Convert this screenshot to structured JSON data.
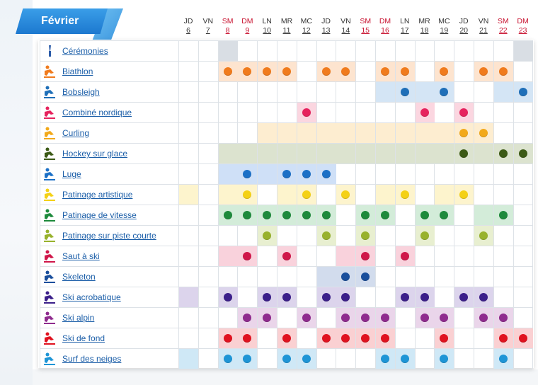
{
  "month": "Février",
  "days": [
    {
      "name": "JD",
      "num": "6",
      "weekend": false
    },
    {
      "name": "VN",
      "num": "7",
      "weekend": false
    },
    {
      "name": "SM",
      "num": "8",
      "weekend": true
    },
    {
      "name": "DM",
      "num": "9",
      "weekend": true
    },
    {
      "name": "LN",
      "num": "10",
      "weekend": false
    },
    {
      "name": "MR",
      "num": "11",
      "weekend": false
    },
    {
      "name": "MC",
      "num": "12",
      "weekend": false
    },
    {
      "name": "JD",
      "num": "13",
      "weekend": false
    },
    {
      "name": "VN",
      "num": "14",
      "weekend": false
    },
    {
      "name": "SM",
      "num": "15",
      "weekend": true
    },
    {
      "name": "DM",
      "num": "16",
      "weekend": true
    },
    {
      "name": "LN",
      "num": "17",
      "weekend": false
    },
    {
      "name": "MR",
      "num": "18",
      "weekend": false
    },
    {
      "name": "MC",
      "num": "19",
      "weekend": false
    },
    {
      "name": "JD",
      "num": "20",
      "weekend": false
    },
    {
      "name": "VN",
      "num": "21",
      "weekend": false
    },
    {
      "name": "SM",
      "num": "22",
      "weekend": true
    },
    {
      "name": "DM",
      "num": "23",
      "weekend": true
    }
  ],
  "sports": [
    {
      "name": "Cérémonies",
      "icon": "torch-icon",
      "color": "#2a5ba8",
      "bg": "#d9dee4",
      "event_days": [
        2,
        17
      ],
      "medal_days": []
    },
    {
      "name": "Biathlon",
      "icon": "biathlon-icon",
      "color": "#f07b1d",
      "bg": "#fde4cf",
      "event_days": [
        2,
        3,
        4,
        5,
        7,
        8,
        10,
        11,
        13,
        15,
        16
      ],
      "medal_days": [
        2,
        3,
        4,
        5,
        7,
        8,
        10,
        11,
        13,
        15,
        16
      ]
    },
    {
      "name": "Bobsleigh",
      "icon": "bobsleigh-icon",
      "color": "#1f6fb8",
      "bg": "#d4e5f5",
      "event_days": [
        10,
        11,
        12,
        13,
        16,
        17
      ],
      "medal_days": [
        11,
        13,
        17
      ]
    },
    {
      "name": "Combiné nordique",
      "icon": "nordic-combined-icon",
      "color": "#e6225d",
      "bg": "#fbd6e0",
      "event_days": [
        6,
        12,
        14
      ],
      "medal_days": [
        6,
        12,
        14
      ]
    },
    {
      "name": "Curling",
      "icon": "curling-icon",
      "color": "#f2a91a",
      "bg": "#fdedd0",
      "event_days": [
        4,
        5,
        6,
        7,
        8,
        9,
        10,
        11,
        12,
        13,
        14,
        15
      ],
      "medal_days": [
        14,
        15
      ]
    },
    {
      "name": "Hockey sur glace",
      "icon": "hockey-icon",
      "color": "#3c5a16",
      "bg": "#dce3cf",
      "event_days": [
        2,
        3,
        4,
        5,
        6,
        7,
        8,
        9,
        10,
        11,
        12,
        13,
        14,
        15,
        16,
        17
      ],
      "medal_days": [
        14,
        16,
        17
      ]
    },
    {
      "name": "Luge",
      "icon": "luge-icon",
      "color": "#1c70c6",
      "bg": "#cfe0f7",
      "event_days": [
        2,
        3,
        4,
        5,
        6,
        7
      ],
      "medal_days": [
        3,
        5,
        6,
        7
      ]
    },
    {
      "name": "Patinage artistique",
      "icon": "figure-skating-icon",
      "color": "#f4d116",
      "bg": "#fdf4cd",
      "event_days": [
        0,
        2,
        3,
        5,
        6,
        8,
        10,
        11,
        13,
        14
      ],
      "medal_days": [
        3,
        6,
        8,
        11,
        14
      ]
    },
    {
      "name": "Patinage de vitesse",
      "icon": "speed-skating-icon",
      "color": "#1e8a3c",
      "bg": "#d3ecd9",
      "event_days": [
        2,
        3,
        4,
        5,
        6,
        7,
        9,
        10,
        12,
        13,
        15,
        16
      ],
      "medal_days": [
        2,
        3,
        4,
        5,
        6,
        7,
        9,
        10,
        12,
        13,
        16
      ]
    },
    {
      "name": "Patinage sur piste courte",
      "icon": "short-track-icon",
      "color": "#98b22d",
      "bg": "#e8efd0",
      "event_days": [
        4,
        7,
        9,
        12,
        15
      ],
      "medal_days": [
        4,
        7,
        9,
        12,
        15
      ]
    },
    {
      "name": "Saut à ski",
      "icon": "ski-jumping-icon",
      "color": "#d0174a",
      "bg": "#f9d2dc",
      "event_days": [
        2,
        3,
        5,
        8,
        9,
        11
      ],
      "medal_days": [
        3,
        5,
        9,
        11
      ]
    },
    {
      "name": "Skeleton",
      "icon": "skeleton-icon",
      "color": "#1a4f9c",
      "bg": "#d2dced",
      "event_days": [
        7,
        8,
        9
      ],
      "medal_days": [
        8,
        9
      ]
    },
    {
      "name": "Ski acrobatique",
      "icon": "freestyle-icon",
      "color": "#3b1f8a",
      "bg": "#dcd4ec",
      "event_days": [
        0,
        2,
        4,
        5,
        7,
        8,
        11,
        12,
        14,
        15
      ],
      "medal_days": [
        2,
        4,
        5,
        7,
        8,
        11,
        12,
        14,
        15
      ]
    },
    {
      "name": "Ski alpin",
      "icon": "alpine-skiing-icon",
      "color": "#8f2b8e",
      "bg": "#ead5ea",
      "event_days": [
        3,
        4,
        6,
        8,
        9,
        10,
        12,
        13,
        15,
        16
      ],
      "medal_days": [
        3,
        4,
        6,
        8,
        9,
        10,
        12,
        13,
        15,
        16
      ]
    },
    {
      "name": "Ski de fond",
      "icon": "cross-country-icon",
      "color": "#e0121f",
      "bg": "#fad0d2",
      "event_days": [
        2,
        3,
        5,
        7,
        8,
        9,
        10,
        13,
        16,
        17
      ],
      "medal_days": [
        2,
        3,
        5,
        7,
        8,
        9,
        10,
        13,
        16,
        17
      ]
    },
    {
      "name": "Surf des neiges",
      "icon": "snowboard-icon",
      "color": "#1e95d6",
      "bg": "#cfe8f6",
      "event_days": [
        0,
        2,
        3,
        5,
        6,
        10,
        11,
        13,
        16
      ],
      "medal_days": [
        2,
        3,
        5,
        6,
        10,
        11,
        13,
        16
      ]
    }
  ]
}
